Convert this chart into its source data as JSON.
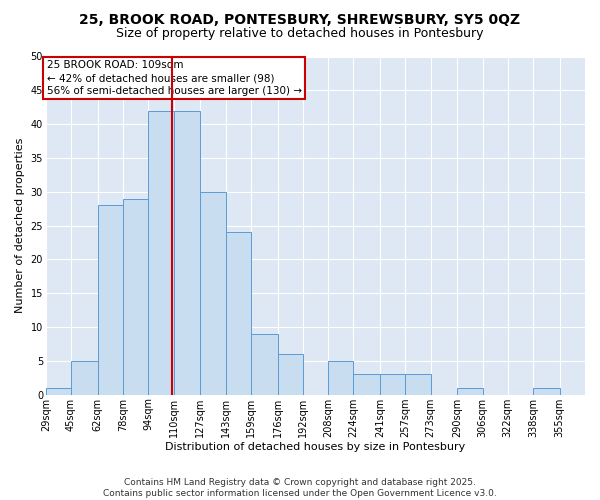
{
  "title_line1": "25, BROOK ROAD, PONTESBURY, SHREWSBURY, SY5 0QZ",
  "title_line2": "Size of property relative to detached houses in Pontesbury",
  "xlabel": "Distribution of detached houses by size in Pontesbury",
  "ylabel": "Number of detached properties",
  "bin_labels": [
    "29sqm",
    "45sqm",
    "62sqm",
    "78sqm",
    "94sqm",
    "110sqm",
    "127sqm",
    "143sqm",
    "159sqm",
    "176sqm",
    "192sqm",
    "208sqm",
    "224sqm",
    "241sqm",
    "257sqm",
    "273sqm",
    "290sqm",
    "306sqm",
    "322sqm",
    "338sqm",
    "355sqm"
  ],
  "bin_edges": [
    29,
    45,
    62,
    78,
    94,
    110,
    127,
    143,
    159,
    176,
    192,
    208,
    224,
    241,
    257,
    273,
    290,
    306,
    322,
    338,
    355
  ],
  "counts": [
    1,
    5,
    28,
    29,
    42,
    42,
    30,
    24,
    9,
    6,
    0,
    5,
    3,
    3,
    3,
    0,
    1,
    0,
    0,
    1,
    0
  ],
  "bar_facecolor": "#c8ddf0",
  "bar_edgecolor": "#5b9bd5",
  "vline_x": 109,
  "vline_color": "#cc0000",
  "annotation_text": "25 BROOK ROAD: 109sqm\n← 42% of detached houses are smaller (98)\n56% of semi-detached houses are larger (130) →",
  "annotation_box_edgecolor": "#cc0000",
  "annotation_box_facecolor": "white",
  "ylim": [
    0,
    50
  ],
  "yticks": [
    0,
    5,
    10,
    15,
    20,
    25,
    30,
    35,
    40,
    45,
    50
  ],
  "background_color": "#dde8f4",
  "footer_text": "Contains HM Land Registry data © Crown copyright and database right 2025.\nContains public sector information licensed under the Open Government Licence v3.0.",
  "grid_color": "white",
  "title_fontsize": 10,
  "subtitle_fontsize": 9,
  "axis_label_fontsize": 8,
  "tick_fontsize": 7,
  "annotation_fontsize": 7.5,
  "footer_fontsize": 6.5
}
